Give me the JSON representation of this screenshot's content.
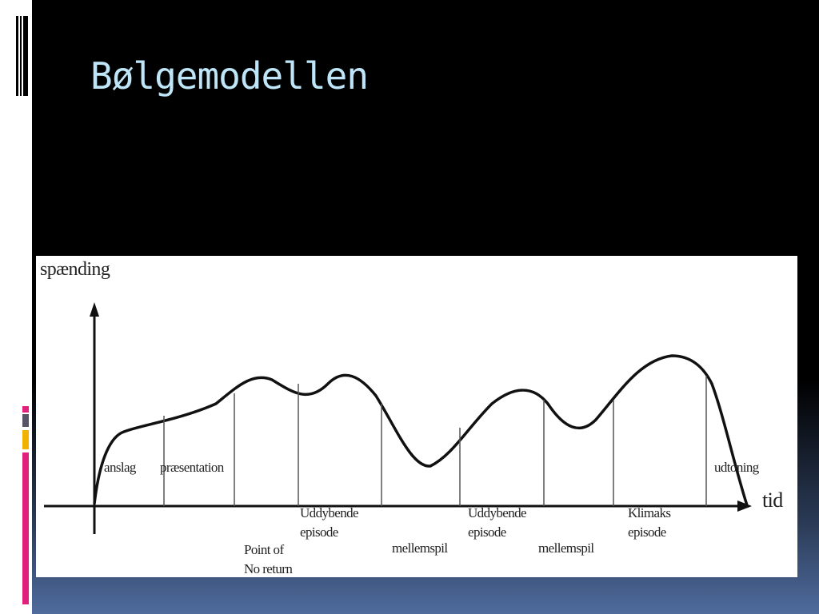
{
  "title": "Bølgemodellen",
  "diagram": {
    "y_axis_label": "spænding",
    "x_axis_label": "tid",
    "labels": [
      [
        "anslag"
      ],
      [
        "præsentation"
      ],
      [
        "Uddybende",
        "episode"
      ],
      [
        "Point of",
        "No return"
      ],
      [
        "mellemspil"
      ],
      [
        "Uddybende",
        "episode"
      ],
      [
        "mellemspil"
      ],
      [
        "Klimaks",
        "episode"
      ],
      [
        "udtoning"
      ]
    ]
  }
}
